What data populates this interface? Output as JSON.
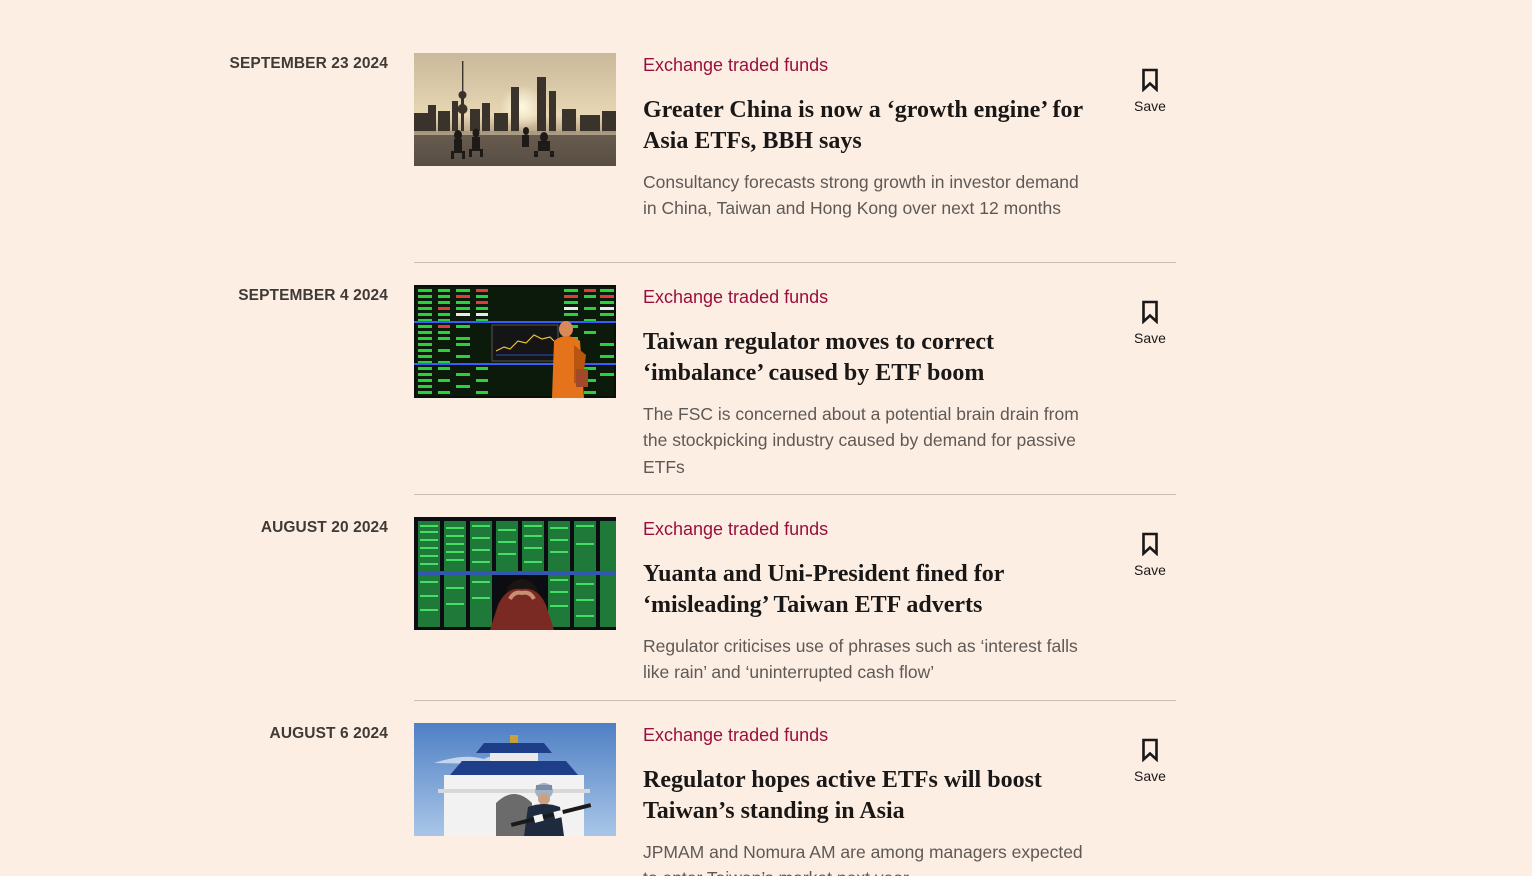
{
  "save_label": "Save",
  "colors": {
    "background": "#fdeee4",
    "topic": "#990f3d",
    "headline": "#1a1817",
    "standfirst": "#5f5955",
    "date": "#3f3a36",
    "divider": "#c9bdb4"
  },
  "articles": [
    {
      "date": "SEPTEMBER 23 2024",
      "topic": "Exchange traded funds",
      "headline": "Greater China is now a ‘growth engine’ for Asia ETFs, BBH says",
      "standfirst": "Consultancy forecasts strong growth in investor demand in China, Taiwan and Hong Kong over next 12 months",
      "image": "shanghai-skyline-tai-chi"
    },
    {
      "date": "SEPTEMBER 4 2024",
      "topic": "Exchange traded funds",
      "headline": "Taiwan regulator moves to correct ‘imbalance’ caused by ETF boom",
      "standfirst": "The FSC is concerned about a potential brain drain from the stockpicking industry caused by demand for passive ETFs",
      "image": "stock-board-monk"
    },
    {
      "date": "AUGUST 20 2024",
      "topic": "Exchange traded funds",
      "headline": "Yuanta and Uni-President fined for ‘misleading’ Taiwan ETF adverts",
      "standfirst": "Regulator criticises use of phrases such as ‘interest falls like rain’ and ‘uninterrupted cash flow’",
      "image": "investor-stock-screens"
    },
    {
      "date": "AUGUST 6 2024",
      "topic": "Exchange traded funds",
      "headline": "Regulator hopes active ETFs will boost Taiwan’s standing in Asia",
      "standfirst": "JPMAM and Nomura AM are among managers expected to enter Taiwan’s market next year",
      "image": "honour-guard-memorial-hall"
    }
  ]
}
